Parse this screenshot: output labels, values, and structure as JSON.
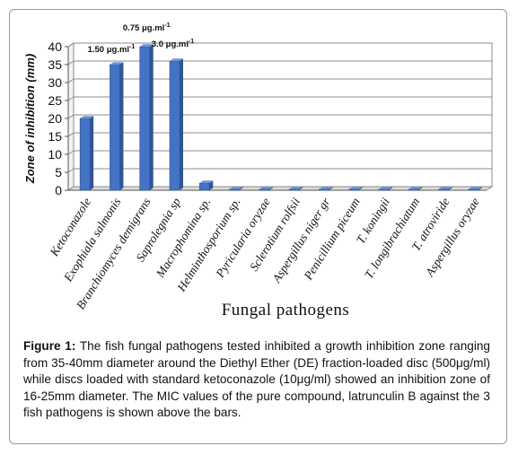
{
  "chart_data": {
    "type": "bar",
    "categories": [
      "Ketoconazole",
      "Exophiala salmonis",
      "Branchiomyces demigrans",
      "Saprolegnia sp",
      "Macrophomina sp.",
      "Helminthosporium sp.",
      "Pyricularia oryzae",
      "Sclerotium rolfsii",
      "Aspergillus niger gr",
      "Penicillium piceum",
      "T. koningii",
      "T. longibrachiatum",
      "T. atroviride",
      "Aspergillus oryzae"
    ],
    "values": [
      20,
      35,
      40,
      36,
      2,
      0.3,
      0.3,
      0.3,
      0.3,
      0.3,
      0.3,
      0.3,
      0.3,
      0.3
    ],
    "ylabel": "Zone of inhibition (mm)",
    "xlabel": "Fungal  pathogens",
    "ylim": [
      0,
      40
    ],
    "yticks": [
      0,
      5,
      10,
      15,
      20,
      25,
      30,
      35,
      40
    ],
    "grid": true,
    "bar_color": "#4472c4",
    "annotations": [
      {
        "category": "Exophiala salmonis",
        "text": "1.50 μg.ml",
        "sup": "-1"
      },
      {
        "category": "Branchiomyces demigrans",
        "text": "0.75 μg.ml",
        "sup": "-1"
      },
      {
        "category": "Saprolegnia sp",
        "text": "3.0  μg.ml",
        "sup": "-1"
      }
    ]
  },
  "caption": {
    "label": "Figure 1:",
    "text": " The fish fungal pathogens tested inhibited a growth inhibition zone ranging from 35-40mm diameter around the Diethyl Ether (DE) fraction-loaded disc (500μg/ml) while discs loaded with standard ketoconazole (10μg/ml) showed an inhibition zone of 16-25mm diameter. The MIC values of the pure compound, latrunculin B against the 3 fish pathogens is shown above the bars."
  }
}
